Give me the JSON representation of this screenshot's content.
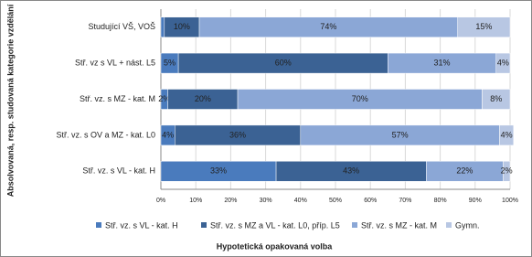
{
  "chart_data": {
    "type": "stacked-bar-horizontal",
    "x_label": "Hypotetická opakovaná volba",
    "y_label": "Absolvovaná, resp. studovaná kategorie vzdělání",
    "categories": [
      "Studující VŠ, VOŠ",
      "Stř. vz s VL + nást. L5",
      "Stř. vz. s MZ - kat. M",
      "Stř. vz. s OV a MZ - kat. L0",
      "Stř. vz. s VL - kat. H"
    ],
    "series": [
      {
        "name": "Stř. vz. s VL - kat. H",
        "color": "#4a7bbd",
        "values": [
          1,
          5,
          2,
          4,
          33
        ],
        "value_labels": [
          null,
          "5%",
          "2%",
          "4%",
          "33%"
        ]
      },
      {
        "name": "Stř. vz. s MZ a VL - kat. L0, příp. L5",
        "color": "#3b6294",
        "values": [
          10,
          60,
          20,
          36,
          43
        ],
        "value_labels": [
          "10%",
          "60%",
          "20%",
          "36%",
          "43%"
        ]
      },
      {
        "name": "Stř. vz. s MZ - kat. M",
        "color": "#8ba7d6",
        "values": [
          74,
          31,
          70,
          57,
          22
        ],
        "value_labels": [
          "74%",
          "31%",
          "70%",
          "57%",
          "22%"
        ]
      },
      {
        "name": "Gymn.",
        "color": "#b8c7e3",
        "values": [
          15,
          4,
          8,
          4,
          2
        ],
        "value_labels": [
          "15%",
          "4%",
          "8%",
          "4%",
          "2%"
        ]
      }
    ],
    "xlim": [
      0,
      100
    ],
    "xticks": [
      {
        "value": 0,
        "label": "0%"
      },
      {
        "value": 10,
        "label": "10%"
      },
      {
        "value": 20,
        "label": "20%"
      },
      {
        "value": 30,
        "label": "30%"
      },
      {
        "value": 40,
        "label": "40%"
      },
      {
        "value": 50,
        "label": "50%"
      },
      {
        "value": 60,
        "label": "60%"
      },
      {
        "value": 70,
        "label": "70%"
      },
      {
        "value": 80,
        "label": "80%"
      },
      {
        "value": 90,
        "label": "90%"
      },
      {
        "value": 100,
        "label": "100%"
      }
    ],
    "grid": true,
    "legend": "bottom"
  }
}
